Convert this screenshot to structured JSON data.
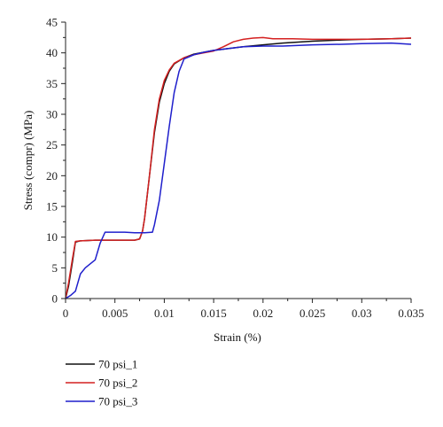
{
  "chart_data": {
    "type": "line",
    "title": "",
    "xlabel": "Strain (%)",
    "ylabel": "Stress (compr) (MPa)",
    "xlim": [
      0,
      0.035
    ],
    "ylim": [
      0,
      45
    ],
    "x_ticks": [
      0,
      0.005,
      0.01,
      0.015,
      0.02,
      0.025,
      0.03,
      0.035
    ],
    "x_tick_labels": [
      "0",
      "0.005",
      "0.01",
      "0.015",
      "0.02",
      "0.025",
      "0.03",
      "0.035"
    ],
    "y_ticks": [
      0,
      5,
      10,
      15,
      20,
      25,
      30,
      35,
      40,
      45
    ],
    "y_tick_labels": [
      "0",
      "5",
      "10",
      "15",
      "20",
      "25",
      "30",
      "35",
      "40",
      "45"
    ],
    "grid": false,
    "legend_position": "bottom-left",
    "series": [
      {
        "name": "70 psi_1",
        "color": "#111111",
        "x": [
          0,
          0.0003,
          0.0007,
          0.001,
          0.0015,
          0.003,
          0.005,
          0.007,
          0.0075,
          0.0078,
          0.008,
          0.0085,
          0.009,
          0.0095,
          0.01,
          0.0105,
          0.011,
          0.012,
          0.013,
          0.014,
          0.015,
          0.016,
          0.018,
          0.02,
          0.022,
          0.025,
          0.028,
          0.03,
          0.033,
          0.035
        ],
        "y": [
          0,
          2,
          6,
          9.2,
          9.4,
          9.5,
          9.5,
          9.5,
          9.7,
          11,
          13,
          20,
          27,
          32,
          35,
          37,
          38.2,
          39.2,
          39.8,
          40.1,
          40.4,
          40.6,
          41,
          41.3,
          41.6,
          41.9,
          42.1,
          42.2,
          42.3,
          42.4
        ]
      },
      {
        "name": "70 psi_2",
        "color": "#d42020",
        "x": [
          0,
          0.0003,
          0.0007,
          0.001,
          0.0015,
          0.003,
          0.005,
          0.007,
          0.0075,
          0.0078,
          0.008,
          0.0085,
          0.009,
          0.0095,
          0.01,
          0.0105,
          0.011,
          0.012,
          0.013,
          0.014,
          0.015,
          0.016,
          0.017,
          0.018,
          0.019,
          0.02,
          0.021,
          0.023,
          0.025,
          0.027,
          0.03,
          0.033,
          0.035
        ],
        "y": [
          0,
          2.5,
          6.5,
          9.3,
          9.4,
          9.5,
          9.5,
          9.5,
          9.7,
          11,
          13,
          20,
          27.5,
          32.5,
          35.5,
          37.2,
          38.3,
          39.2,
          39.7,
          40,
          40.3,
          41,
          41.8,
          42.2,
          42.4,
          42.5,
          42.3,
          42.3,
          42.2,
          42.2,
          42.2,
          42.3,
          42.4
        ]
      },
      {
        "name": "70 psi_3",
        "color": "#1f1fcc",
        "x": [
          0,
          0.0005,
          0.001,
          0.0015,
          0.002,
          0.003,
          0.0035,
          0.004,
          0.005,
          0.006,
          0.007,
          0.008,
          0.0088,
          0.009,
          0.0095,
          0.01,
          0.0105,
          0.011,
          0.0115,
          0.012,
          0.013,
          0.014,
          0.015,
          0.016,
          0.018,
          0.02,
          0.022,
          0.025,
          0.028,
          0.03,
          0.033,
          0.035
        ],
        "y": [
          0,
          0.5,
          1.2,
          4,
          5,
          6.3,
          9,
          10.8,
          10.8,
          10.8,
          10.7,
          10.7,
          10.8,
          12,
          16,
          22,
          28,
          33.5,
          37,
          39,
          39.7,
          40.1,
          40.4,
          40.6,
          41,
          41.1,
          41.1,
          41.3,
          41.4,
          41.5,
          41.6,
          41.4
        ]
      }
    ]
  }
}
